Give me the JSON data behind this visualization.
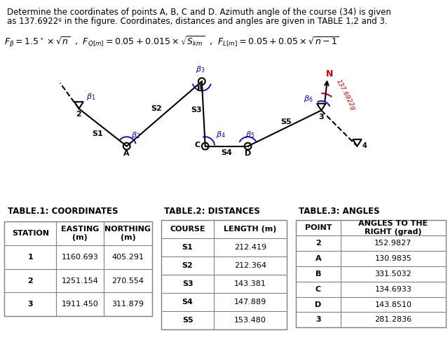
{
  "title_line1": "Determine the coordinates of points A, B, C and D. Azimuth angle of the course (34) is given",
  "title_line2": "as 137.6922ᵍ in the figure. Coordinates, distances and angles are given in TABLE 1,2 and 3.",
  "table1_title": "TABLE.1: COORDINATES",
  "table1_rows": [
    [
      "STATION",
      "EASTING\n(m)",
      "NORTHING\n(m)"
    ],
    [
      "1",
      "1160.693",
      "405.291"
    ],
    [
      "2",
      "1251.154",
      "270.554"
    ],
    [
      "3",
      "1911.450",
      "311.879"
    ]
  ],
  "table2_title": "TABLE.2: DISTANCES",
  "table2_rows": [
    [
      "COURSE",
      "LENGTH (m)"
    ],
    [
      "S1",
      "212.419"
    ],
    [
      "S2",
      "212.364"
    ],
    [
      "S3",
      "143.381"
    ],
    [
      "S4",
      "147.889"
    ],
    [
      "S5",
      "153.480"
    ]
  ],
  "table3_title": "TABLE.3: ANGLES",
  "table3_rows": [
    [
      "POINT",
      "ANGLES TO THE\nRIGHT (grad)"
    ],
    [
      "2",
      "152.9827"
    ],
    [
      "A",
      "130.9835"
    ],
    [
      "B",
      "331.5032"
    ],
    [
      "C",
      "134.6933"
    ],
    [
      "D",
      "143.8510"
    ],
    [
      "3",
      "281.2836"
    ]
  ],
  "bg_color": "#ffffff",
  "line_color": "#000000",
  "blue_color": "#0000cc",
  "red_color": "#cc0000"
}
